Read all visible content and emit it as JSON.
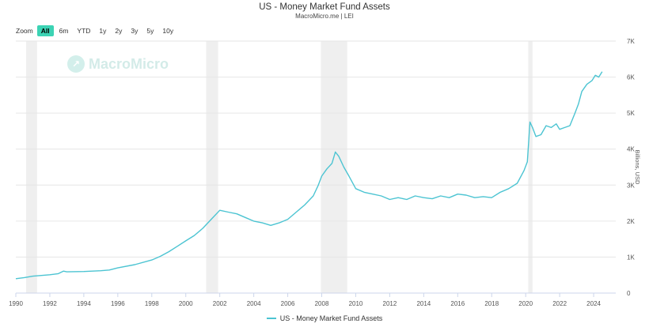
{
  "title": "US - Money Market Fund Assets",
  "subtitle": "MacroMicro.me | LEI",
  "zoom": {
    "label": "Zoom",
    "buttons": [
      "All",
      "6m",
      "YTD",
      "1y",
      "2y",
      "3y",
      "5y",
      "10y"
    ],
    "active": "All"
  },
  "watermark": "MacroMicro",
  "legend_label": "US - Money Market Fund Assets",
  "colors": {
    "line": "#4cc4d2",
    "recession": "#efefef",
    "grid": "#e6e6e6",
    "active_button": "#3cd3b4"
  },
  "chart_data": {
    "type": "line",
    "title": "US - Money Market Fund Assets",
    "subtitle": "MacroMicro.me | LEI",
    "ylabel": "Billions, USD",
    "y_axis_position": "right",
    "ylim": [
      0,
      7000
    ],
    "yticks": [
      0,
      1000,
      2000,
      3000,
      4000,
      5000,
      6000,
      7000
    ],
    "ytick_labels": [
      "0",
      "1K",
      "2K",
      "3K",
      "4K",
      "5K",
      "6K",
      "7K"
    ],
    "xlim": [
      1990,
      2025.3
    ],
    "xticks": [
      1990,
      1992,
      1994,
      1996,
      1998,
      2000,
      2002,
      2004,
      2006,
      2008,
      2010,
      2012,
      2014,
      2016,
      2018,
      2020,
      2022,
      2024
    ],
    "grid": true,
    "legend_position": "bottom-center",
    "recessions": [
      [
        1990.6,
        1991.25
      ],
      [
        2001.2,
        2001.9
      ],
      [
        2007.95,
        2009.5
      ],
      [
        2020.15,
        2020.4
      ]
    ],
    "series": [
      {
        "name": "US - Money Market Fund Assets",
        "x": [
          1990.0,
          1990.5,
          1991.0,
          1991.5,
          1992.0,
          1992.5,
          1992.8,
          1993.0,
          1994.0,
          1995.0,
          1995.5,
          1996.0,
          1997.0,
          1998.0,
          1998.5,
          1999.0,
          1999.5,
          2000.0,
          2000.5,
          2001.0,
          2001.5,
          2002.0,
          2002.5,
          2003.0,
          2003.5,
          2004.0,
          2004.5,
          2005.0,
          2005.5,
          2006.0,
          2006.5,
          2007.0,
          2007.5,
          2007.8,
          2008.0,
          2008.3,
          2008.6,
          2008.8,
          2009.0,
          2009.3,
          2009.6,
          2010.0,
          2010.5,
          2011.0,
          2011.5,
          2012.0,
          2012.5,
          2013.0,
          2013.5,
          2014.0,
          2014.5,
          2015.0,
          2015.5,
          2016.0,
          2016.5,
          2017.0,
          2017.5,
          2018.0,
          2018.5,
          2019.0,
          2019.5,
          2019.9,
          2020.1,
          2020.25,
          2020.4,
          2020.6,
          2020.9,
          2021.2,
          2021.5,
          2021.8,
          2022.0,
          2022.3,
          2022.6,
          2022.9,
          2023.1,
          2023.3,
          2023.6,
          2023.9,
          2024.1,
          2024.3,
          2024.5
        ],
        "values": [
          400,
          430,
          470,
          490,
          510,
          540,
          610,
          590,
          600,
          620,
          640,
          700,
          790,
          920,
          1020,
          1150,
          1300,
          1450,
          1600,
          1800,
          2050,
          2300,
          2250,
          2200,
          2100,
          2000,
          1950,
          1880,
          1950,
          2050,
          2250,
          2450,
          2700,
          3000,
          3250,
          3450,
          3600,
          3920,
          3800,
          3500,
          3250,
          2900,
          2800,
          2750,
          2700,
          2600,
          2650,
          2600,
          2700,
          2650,
          2620,
          2700,
          2650,
          2750,
          2720,
          2650,
          2680,
          2650,
          2800,
          2900,
          3050,
          3400,
          3650,
          4750,
          4600,
          4350,
          4400,
          4650,
          4600,
          4700,
          4550,
          4600,
          4650,
          5000,
          5250,
          5600,
          5800,
          5900,
          6050,
          6000,
          6150
        ]
      }
    ]
  }
}
